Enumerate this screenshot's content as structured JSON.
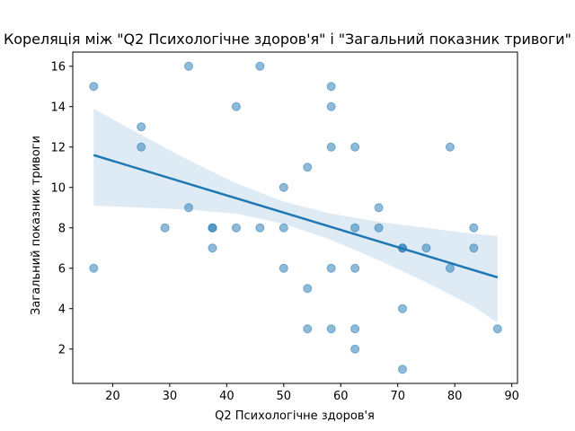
{
  "chart_data": {
    "type": "scatter",
    "title": "Кореляція між \"Q2 Психологічне здоров'я\" і \"Загальний показник тривоги\"",
    "xlabel": "Q2 Психологічне здоров'я",
    "ylabel": "Загальний показник тривоги",
    "xlim": [
      13,
      91
    ],
    "ylim": [
      0.3,
      16.7
    ],
    "xticks": [
      20,
      30,
      40,
      50,
      60,
      70,
      80,
      90
    ],
    "yticks": [
      2,
      4,
      6,
      8,
      10,
      12,
      14,
      16
    ],
    "grid": false,
    "points": [
      {
        "x": 16.67,
        "y": 15
      },
      {
        "x": 16.67,
        "y": 6
      },
      {
        "x": 25,
        "y": 13
      },
      {
        "x": 25,
        "y": 12
      },
      {
        "x": 29.17,
        "y": 8
      },
      {
        "x": 33.33,
        "y": 16
      },
      {
        "x": 33.33,
        "y": 9
      },
      {
        "x": 37.5,
        "y": 8
      },
      {
        "x": 37.5,
        "y": 8
      },
      {
        "x": 37.5,
        "y": 7
      },
      {
        "x": 41.67,
        "y": 14
      },
      {
        "x": 41.67,
        "y": 8
      },
      {
        "x": 45.83,
        "y": 16
      },
      {
        "x": 45.83,
        "y": 8
      },
      {
        "x": 50,
        "y": 10
      },
      {
        "x": 50,
        "y": 8
      },
      {
        "x": 50,
        "y": 6
      },
      {
        "x": 54.17,
        "y": 11
      },
      {
        "x": 54.17,
        "y": 5
      },
      {
        "x": 54.17,
        "y": 3
      },
      {
        "x": 58.33,
        "y": 15
      },
      {
        "x": 58.33,
        "y": 14
      },
      {
        "x": 58.33,
        "y": 12
      },
      {
        "x": 58.33,
        "y": 6
      },
      {
        "x": 58.33,
        "y": 3
      },
      {
        "x": 62.5,
        "y": 12
      },
      {
        "x": 62.5,
        "y": 8
      },
      {
        "x": 62.5,
        "y": 6
      },
      {
        "x": 62.5,
        "y": 3
      },
      {
        "x": 62.5,
        "y": 2
      },
      {
        "x": 66.67,
        "y": 9
      },
      {
        "x": 66.67,
        "y": 8
      },
      {
        "x": 70.83,
        "y": 7
      },
      {
        "x": 70.83,
        "y": 7
      },
      {
        "x": 70.83,
        "y": 4
      },
      {
        "x": 70.83,
        "y": 1
      },
      {
        "x": 75,
        "y": 7
      },
      {
        "x": 79.17,
        "y": 12
      },
      {
        "x": 79.17,
        "y": 6
      },
      {
        "x": 83.33,
        "y": 8
      },
      {
        "x": 83.33,
        "y": 7
      },
      {
        "x": 87.5,
        "y": 3
      }
    ],
    "regression": {
      "x": [
        16.67,
        87.5
      ],
      "y": [
        11.6,
        5.55
      ]
    },
    "confidence_band": {
      "x": [
        16.67,
        25,
        33.33,
        41.67,
        50,
        58.33,
        66.67,
        75,
        83.33,
        87.5
      ],
      "upper": [
        13.9,
        12.6,
        11.35,
        10.2,
        9.3,
        8.7,
        8.3,
        8.0,
        7.7,
        7.6
      ],
      "lower": [
        9.1,
        9.0,
        8.9,
        8.7,
        8.2,
        7.4,
        6.4,
        5.3,
        4.1,
        3.3
      ]
    },
    "colors": {
      "points": "#1f77b4",
      "line": "#1f77b4",
      "band": "#1f77b4"
    }
  }
}
